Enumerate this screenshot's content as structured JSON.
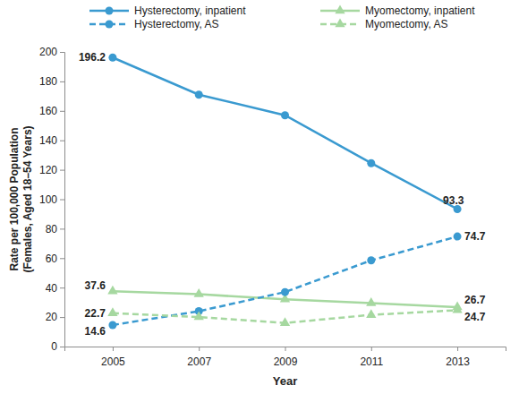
{
  "chart_data": {
    "type": "line",
    "x_label": "Year",
    "y_label": [
      "Rate per 100,000 Population",
      "(Females, Aged 18–54 Years)"
    ],
    "categories": [
      "2005",
      "2007",
      "2009",
      "2011",
      "2013"
    ],
    "ylim": [
      0,
      200
    ],
    "yticks": [
      0,
      20,
      40,
      60,
      80,
      100,
      120,
      140,
      160,
      180,
      200
    ],
    "grid": false,
    "legend": "top",
    "data_labels": true,
    "series": [
      {
        "name": "Hysterectomy, inpatient",
        "color": "#3a9ad0",
        "marker": "circle",
        "line_style": "solid",
        "values": [
          196.2,
          171,
          157,
          124.5,
          93.3
        ],
        "value_labels": [
          "196.2",
          null,
          null,
          null,
          "93.3"
        ]
      },
      {
        "name": "Myomectomy, inpatient",
        "color": "#a6d8a0",
        "marker": "triangle",
        "line_style": "solid",
        "values": [
          37.6,
          35.5,
          32,
          29.5,
          26.7
        ],
        "value_labels": [
          "37.6",
          null,
          null,
          null,
          "26.7"
        ]
      },
      {
        "name": "Hysterectomy, AS",
        "color": "#3a9ad0",
        "marker": "circle",
        "line_style": "dashed",
        "values": [
          14.6,
          24,
          37,
          58.5,
          74.7
        ],
        "value_labels": [
          "14.6",
          null,
          null,
          null,
          "74.7"
        ]
      },
      {
        "name": "Myomectomy, AS",
        "color": "#a6d8a0",
        "marker": "triangle",
        "line_style": "dashed",
        "values": [
          22.7,
          20,
          16,
          21.5,
          24.7
        ],
        "value_labels": [
          "22.7",
          null,
          null,
          null,
          "24.7"
        ]
      }
    ]
  }
}
